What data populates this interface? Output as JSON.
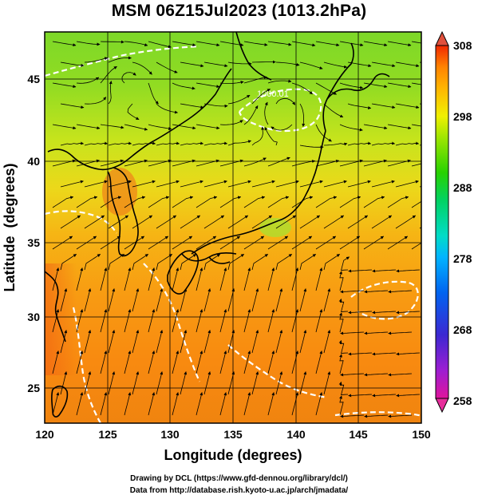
{
  "title": "MSM 06Z15Jul2023 (1013.2hPa)",
  "axes": {
    "xlabel": "Longitude (degrees)",
    "ylabel": "Latitude  (degrees)",
    "xticks": [
      "120",
      "125",
      "130",
      "135",
      "140",
      "145",
      "150"
    ],
    "yticks": [
      "25",
      "30",
      "35",
      "40",
      "45"
    ],
    "xlim": [
      120,
      150
    ],
    "ylim": [
      22.5,
      47.5
    ]
  },
  "colorbar": {
    "ticks": [
      "308",
      "298",
      "288",
      "278",
      "268",
      "258"
    ],
    "range": [
      258,
      308
    ],
    "colors": [
      "#e0149c",
      "#9c1ed2",
      "#3c28d2",
      "#0064f0",
      "#00b4ff",
      "#00dcc8",
      "#00d264",
      "#28d200",
      "#a0e600",
      "#f0f000",
      "#ffb400",
      "#ff8200",
      "#f02800"
    ]
  },
  "contour_label": "1000.01",
  "credits": {
    "line1": "Drawing by DCL (https://www.gfd-dennou.org/library/dcl/)",
    "line2": "Data from http://database.rish.kyoto-u.ac.jp/arch/jmadata/"
  }
}
